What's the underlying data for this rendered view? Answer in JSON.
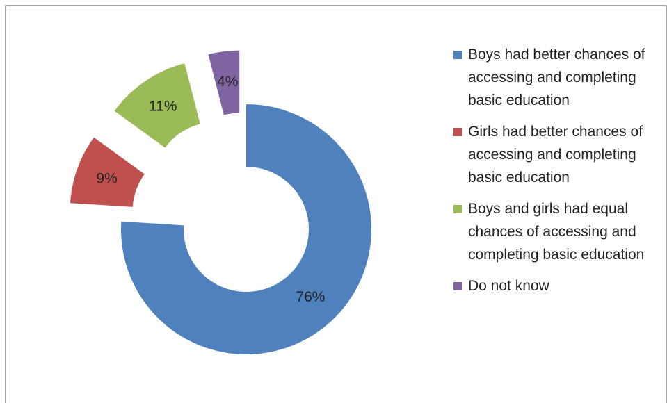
{
  "chart_data": {
    "type": "donut",
    "categories": [
      "Boys had better chances of accessing and completing basic education",
      "Girls had better chances of accessing and completing basic education",
      "Boys and girls had equal chances of accessing and completing basic education",
      "Do not know"
    ],
    "values": [
      76,
      9,
      11,
      4
    ],
    "value_labels": [
      "76%",
      "9%",
      "11%",
      "4%"
    ],
    "colors": [
      "#4f81bd",
      "#c0504d",
      "#9bbb59",
      "#8064a2"
    ],
    "legend": "right"
  }
}
